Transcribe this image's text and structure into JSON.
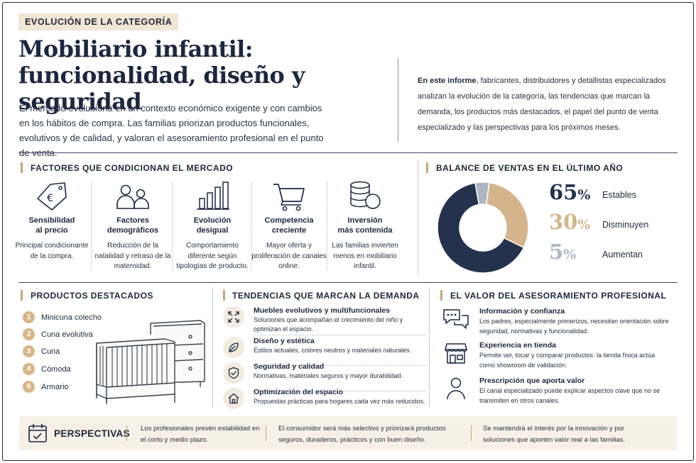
{
  "tag": "EVOLUCIÓN DE LA CATEGORÍA",
  "title_line1": "Mobiliario infantil:",
  "title_line2": "funcionalidad, diseño y seguridad",
  "intro": "El mercado evoluciona en un contexto económico exigente y con cambios en los hábitos de compra. Las familias priorizan productos funcionales, evolutivos y de calidad, y valoran el asesoramiento profesional en el punto de venta.",
  "inform": {
    "bold": "En este informe",
    "text": ", fabricantes, distribuidores y detallistas especializados analizan la evolución de la categoría, las tendencias que marcan la demanda, los productos más destacados, el papel del punto de venta especializado y las perspectivas para los próximos meses."
  },
  "factores": {
    "title": "FACTORES QUE CONDICIONAN EL MERCADO",
    "items": [
      {
        "icon": "euro-tag-icon",
        "title": "Sensibilidad\nal precio",
        "desc": "Principal condicionante de la compra."
      },
      {
        "icon": "people-icon",
        "title": "Factores\ndemográficos",
        "desc": "Reducción de la natalidad y retraso de la maternidad."
      },
      {
        "icon": "bar-chart-icon",
        "title": "Evolución\ndesigual",
        "desc": "Comportamiento diferente según tipologías de producto."
      },
      {
        "icon": "shopping-cart-icon",
        "title": "Competencia\ncreciente",
        "desc": "Mayor oferta y proliferación de canales online."
      },
      {
        "icon": "coins-icon",
        "title": "Inversión\nmás contenida",
        "desc": "Las familias invierten menos en mobiliario infantil."
      }
    ]
  },
  "balance": {
    "title": "BALANCE DE VENTAS EN EL ÚLTIMO AÑO",
    "items": [
      {
        "value": "65",
        "unit": "%",
        "label": "Estables",
        "color": "#25324d"
      },
      {
        "value": "30",
        "unit": "%",
        "label": "Disminuyen",
        "color": "#d4b48a"
      },
      {
        "value": "5",
        "unit": "%",
        "label": "Aumentan",
        "color": "#aeb6c4"
      }
    ]
  },
  "chart_data": {
    "type": "pie",
    "categories": [
      "Estables",
      "Disminuyen",
      "Aumentan"
    ],
    "values": [
      65,
      30,
      5
    ],
    "colors": [
      "#25324d",
      "#d4b48a",
      "#aeb6c4"
    ],
    "title": "BALANCE DE VENTAS EN EL ÚLTIMO AÑO"
  },
  "productos": {
    "title": "PRODUCTOS DESTACADOS",
    "items": [
      {
        "num": "1",
        "label": "Minicuna colecho"
      },
      {
        "num": "2",
        "label": "Cuna evolutiva"
      },
      {
        "num": "3",
        "label": "Cuna"
      },
      {
        "num": "4",
        "label": "Cómoda"
      },
      {
        "num": "5",
        "label": "Armario"
      }
    ]
  },
  "tendencias": {
    "title": "TENDENCIAS QUE MARCAN LA DEMANDA",
    "items": [
      {
        "icon": "expand-arrows-icon",
        "title": "Muebles evolutivos y multifuncionales",
        "desc": "Soluciones que acompañan el crecimiento del niño y optimizan el espacio."
      },
      {
        "icon": "leaf-icon",
        "title": "Diseño y estética",
        "desc": "Estilos actuales, colores neutros y materiales naturales."
      },
      {
        "icon": "shield-check-icon",
        "title": "Seguridad y calidad",
        "desc": "Normativas, materiales seguros y mayor durabilidad."
      },
      {
        "icon": "house-icon",
        "title": "Optimización del espacio",
        "desc": "Propuestas prácticas para hogares cada vez más reducidos."
      }
    ]
  },
  "valor": {
    "title": "EL VALOR DEL ASESORAMIENTO PROFESIONAL",
    "items": [
      {
        "icon": "chat-bubbles-icon",
        "title": "Información y confianza",
        "desc": "Los padres, especialmente primerizos, necesitan orientación sobre seguridad, normativas y funcionalidad."
      },
      {
        "icon": "store-icon",
        "title": "Experiencia en tienda",
        "desc": "Permite ver, tocar y comparar productos: la tienda física actúa como showroom de validación."
      },
      {
        "icon": "person-icon",
        "title": "Prescripción que aporta valor",
        "desc": "El canal especializado puede explicar aspectos clave que no se transmiten en otros canales."
      }
    ]
  },
  "perspectivas": {
    "title": "PERSPECTIVAS",
    "cols": [
      "Los profesionales prevén estabilidad en el corto y medio plazo.",
      "El consumidor será más selectivo y priorizará productos seguros, duraderos, prácticos y con buen diseño.",
      "Se mantendrá el interés por la innovación y por soluciones que aporten valor real a las familias."
    ]
  }
}
